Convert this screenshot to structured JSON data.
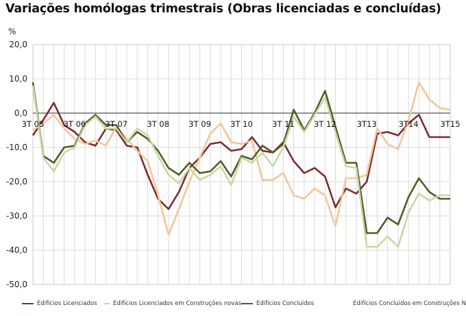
{
  "chart_data": {
    "type": "line",
    "title": "Variações homólogas trimestrais (Obras licenciadas e concluídas)",
    "ylabel": "%",
    "ylim": [
      -50,
      20
    ],
    "yticks": [
      20,
      10,
      0,
      -10,
      -20,
      -30,
      -40,
      -50
    ],
    "ytick_labels": [
      "20,0",
      "10,0",
      "0,0",
      "-10,0",
      "-20,0",
      "-30,0",
      "-40,0",
      "-50,0"
    ],
    "x": [
      "3T 05",
      "4T 05",
      "1T 06",
      "2T 06",
      "3T 06",
      "4T 06",
      "1T 07",
      "2T 07",
      "3T 07",
      "4T 07",
      "1T 08",
      "2T 08",
      "3T 08",
      "4T 08",
      "1T 09",
      "2T 09",
      "3T 09",
      "4T 09",
      "1T 10",
      "2T 10",
      "3T 10",
      "4T 10",
      "1T 11",
      "2T 11",
      "3T 11",
      "4T 11",
      "1T 12",
      "2T 12",
      "3T 12",
      "4T 12",
      "1T 13",
      "2T 13",
      "3T 13",
      "4T 13",
      "1T 14",
      "2T 14",
      "3T 14",
      "4T 14",
      "1T 15",
      "2T 15",
      "3T 15"
    ],
    "x_tick_labels": [
      "3T 05",
      "3T 06",
      "3T 07",
      "3T 08",
      "3T 09",
      "3T 10",
      "3T 11",
      "3T 12",
      "3T13",
      "3T14",
      "3T15"
    ],
    "grid": true,
    "legend_position": "bottom",
    "series": [
      {
        "name": "Edifícios Licenciados",
        "color": "#7b2a2f",
        "values": [
          -6.5,
          -2,
          3,
          -3.5,
          -5.5,
          -8.5,
          -9.5,
          -4.5,
          -5,
          -9.5,
          -10,
          -18,
          -25,
          -28,
          -23,
          -16,
          -13,
          -9,
          -8.5,
          -11,
          -10.5,
          -7,
          -11,
          -11.5,
          -8.5,
          -14,
          -17.5,
          -16,
          -18.5,
          -27.5,
          -22,
          -23.5,
          -20,
          -6,
          -5.5,
          -6.5,
          -3,
          -0.5,
          -7,
          -7,
          -7
        ]
      },
      {
        "name": "Edifícios Licenciados em Construções novas",
        "color": "#f6c49a",
        "values": [
          -5,
          -3,
          -0.5,
          -4.5,
          -7.5,
          -9,
          -8,
          -9.5,
          -4,
          -7.5,
          -11,
          -14,
          -24,
          -35.5,
          -28,
          -20,
          -13,
          -6,
          -3,
          -8.5,
          -9,
          -8,
          -19.5,
          -19.5,
          -17.5,
          -24,
          -25,
          -22,
          -24,
          -33,
          -19,
          -19,
          -18,
          -4.5,
          -9,
          -10.5,
          -2,
          9,
          4,
          1.5,
          1
        ]
      },
      {
        "name": "Edifícios Concluídos",
        "color": "#4e5d24",
        "values": [
          9,
          -12.5,
          -14.5,
          -10,
          -9.5,
          -3,
          -0.5,
          -3.5,
          -3.5,
          -8.5,
          -5.5,
          -7.5,
          -11,
          -16,
          -18,
          -14.5,
          -17.5,
          -17,
          -14,
          -18.5,
          -12.5,
          -13.5,
          -9.5,
          -11.5,
          -9,
          1,
          -5,
          0,
          6.5,
          -4,
          -14.5,
          -14.5,
          -35,
          -35,
          -30.5,
          -32.5,
          -24.5,
          -19,
          -23,
          -25,
          -25
        ]
      },
      {
        "name": "Edifícios Concluídos em Construções Novas",
        "color": "#c6d9a4",
        "values": [
          8,
          -13,
          -17,
          -11.5,
          -10,
          -3.5,
          -1,
          -4.5,
          -4.5,
          -8.5,
          -4.5,
          -6.5,
          -12.5,
          -18,
          -20.5,
          -16,
          -19.5,
          -18,
          -15.5,
          -21,
          -13,
          -14.5,
          -11.5,
          -15.5,
          -10,
          -1,
          -5.5,
          -0.5,
          4.5,
          -5.5,
          -15.5,
          -16,
          -39,
          -39,
          -36,
          -39,
          -29,
          -23.5,
          -25.5,
          -24,
          -24
        ]
      }
    ]
  }
}
